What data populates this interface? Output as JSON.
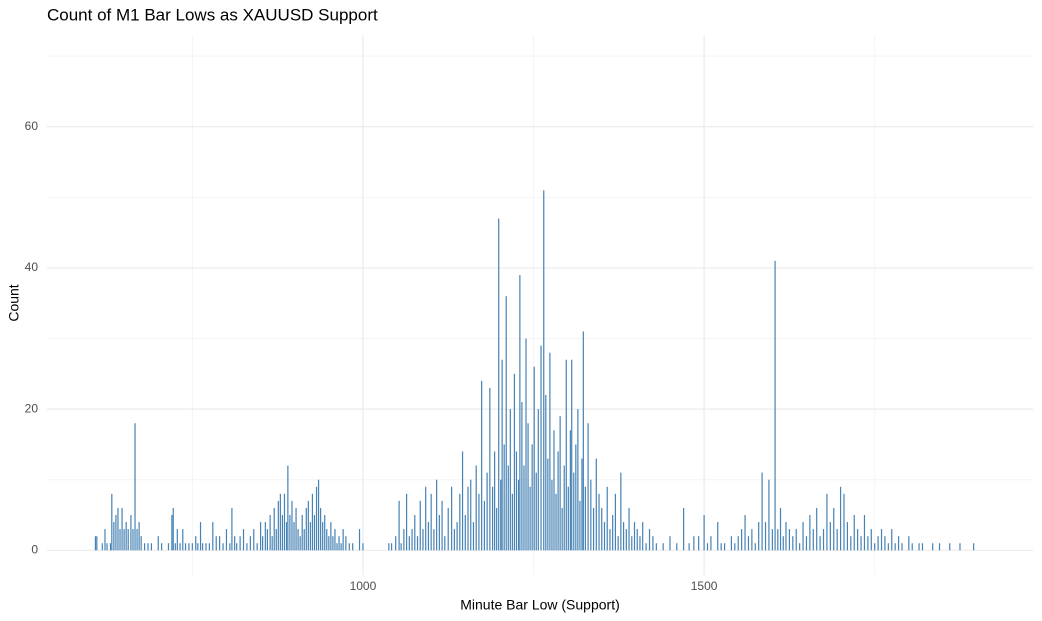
{
  "chart_data": {
    "type": "bar",
    "title": "Count of M1 Bar Lows as XAUUSD Support",
    "x_label": "Minute Bar Low (Support)",
    "y_label": "Count",
    "color": "#4682b4",
    "grid": true,
    "xlim": [
      537,
      1982
    ],
    "ylim": [
      -3.5,
      73
    ],
    "xticks": [
      1000,
      1500
    ],
    "x_minor_ticks": [
      750,
      1250,
      1750
    ],
    "yticks": [
      0,
      20,
      40,
      60
    ],
    "y_minor_ticks": [
      10,
      30,
      50,
      70
    ],
    "x": [
      608,
      610,
      618,
      622,
      625,
      630,
      632,
      635,
      638,
      641,
      644,
      647,
      650,
      653,
      656,
      660,
      663,
      666,
      669,
      672,
      675,
      680,
      685,
      690,
      700,
      705,
      715,
      720,
      722,
      725,
      728,
      732,
      736,
      740,
      745,
      750,
      755,
      758,
      762,
      765,
      770,
      775,
      780,
      785,
      790,
      795,
      800,
      805,
      808,
      812,
      815,
      820,
      825,
      830,
      835,
      840,
      845,
      850,
      853,
      857,
      860,
      864,
      867,
      870,
      873,
      876,
      879,
      882,
      885,
      888,
      890,
      893,
      896,
      899,
      902,
      905,
      908,
      911,
      914,
      917,
      920,
      923,
      926,
      929,
      932,
      935,
      938,
      941,
      944,
      947,
      950,
      953,
      956,
      959,
      962,
      965,
      968,
      971,
      975,
      980,
      985,
      995,
      1000,
      1038,
      1042,
      1048,
      1053,
      1056,
      1060,
      1064,
      1068,
      1072,
      1076,
      1080,
      1084,
      1088,
      1092,
      1096,
      1100,
      1104,
      1108,
      1112,
      1116,
      1120,
      1125,
      1130,
      1134,
      1138,
      1142,
      1146,
      1150,
      1154,
      1158,
      1162,
      1166,
      1170,
      1174,
      1178,
      1182,
      1186,
      1190,
      1193,
      1196,
      1199,
      1202,
      1204,
      1207,
      1210,
      1213,
      1216,
      1219,
      1222,
      1225,
      1228,
      1230,
      1233,
      1236,
      1239,
      1242,
      1245,
      1248,
      1251,
      1254,
      1257,
      1261,
      1265,
      1268,
      1271,
      1274,
      1277,
      1280,
      1283,
      1286,
      1289,
      1292,
      1295,
      1298,
      1301,
      1304,
      1306,
      1309,
      1312,
      1315,
      1318,
      1321,
      1323,
      1326,
      1330,
      1334,
      1338,
      1342,
      1346,
      1350,
      1354,
      1358,
      1362,
      1366,
      1370,
      1374,
      1378,
      1382,
      1386,
      1390,
      1394,
      1398,
      1402,
      1406,
      1410,
      1415,
      1420,
      1425,
      1430,
      1440,
      1450,
      1460,
      1470,
      1478,
      1485,
      1492,
      1500,
      1505,
      1510,
      1520,
      1525,
      1530,
      1540,
      1545,
      1550,
      1555,
      1560,
      1565,
      1570,
      1575,
      1580,
      1585,
      1590,
      1595,
      1600,
      1604,
      1608,
      1612,
      1616,
      1620,
      1625,
      1630,
      1635,
      1640,
      1645,
      1650,
      1655,
      1660,
      1665,
      1670,
      1675,
      1680,
      1685,
      1690,
      1695,
      1700,
      1705,
      1710,
      1715,
      1720,
      1725,
      1730,
      1735,
      1740,
      1745,
      1750,
      1755,
      1760,
      1765,
      1770,
      1775,
      1780,
      1785,
      1790,
      1800,
      1805,
      1815,
      1820,
      1835,
      1845,
      1860,
      1875,
      1895
    ],
    "values": [
      2,
      2,
      1,
      3,
      1,
      1,
      8,
      4,
      5,
      6,
      3,
      6,
      3,
      4,
      3,
      5,
      3,
      18,
      3,
      4,
      2,
      1,
      1,
      1,
      2,
      1,
      1,
      5,
      6,
      1,
      3,
      1,
      3,
      1,
      1,
      1,
      2,
      1,
      4,
      1,
      1,
      1,
      4,
      2,
      2,
      1,
      3,
      1,
      6,
      2,
      1,
      2,
      3,
      1,
      2,
      3,
      1,
      4,
      2,
      4,
      3,
      5,
      2,
      6,
      3,
      7,
      8,
      5,
      8,
      4,
      12,
      5,
      7,
      4,
      6,
      3,
      2,
      5,
      3,
      6,
      7,
      4,
      8,
      5,
      9,
      10,
      6,
      4,
      5,
      3,
      2,
      4,
      2,
      3,
      1,
      2,
      1,
      3,
      2,
      1,
      1,
      3,
      1,
      1,
      1,
      2,
      7,
      1,
      3,
      8,
      2,
      3,
      5,
      2,
      7,
      3,
      9,
      4,
      8,
      3,
      10,
      5,
      7,
      2,
      6,
      9,
      3,
      4,
      8,
      14,
      5,
      9,
      10,
      4,
      12,
      8,
      24,
      7,
      11,
      23,
      9,
      14,
      6,
      47,
      10,
      27,
      15,
      36,
      12,
      20,
      8,
      25,
      14,
      10,
      39,
      21,
      12,
      30,
      18,
      9,
      15,
      26,
      11,
      20,
      29,
      51,
      22,
      13,
      28,
      10,
      17,
      8,
      14,
      19,
      6,
      12,
      27,
      9,
      17,
      27,
      11,
      15,
      20,
      7,
      13,
      31,
      9,
      18,
      10,
      6,
      13,
      8,
      6,
      4,
      9,
      3,
      5,
      8,
      2,
      11,
      4,
      3,
      6,
      2,
      4,
      3,
      2,
      4,
      1,
      3,
      2,
      1,
      1,
      2,
      1,
      6,
      1,
      2,
      2,
      5,
      1,
      2,
      4,
      1,
      1,
      2,
      1,
      2,
      3,
      5,
      2,
      3,
      1,
      4,
      11,
      4,
      10,
      3,
      41,
      3,
      6,
      2,
      4,
      3,
      2,
      3,
      1,
      4,
      2,
      5,
      3,
      6,
      2,
      3,
      8,
      4,
      6,
      3,
      9,
      8,
      4,
      2,
      5,
      3,
      2,
      5,
      2,
      3,
      1,
      2,
      3,
      2,
      1,
      3,
      1,
      2,
      1,
      2,
      1,
      1,
      1,
      1,
      1,
      1,
      1,
      1
    ]
  }
}
